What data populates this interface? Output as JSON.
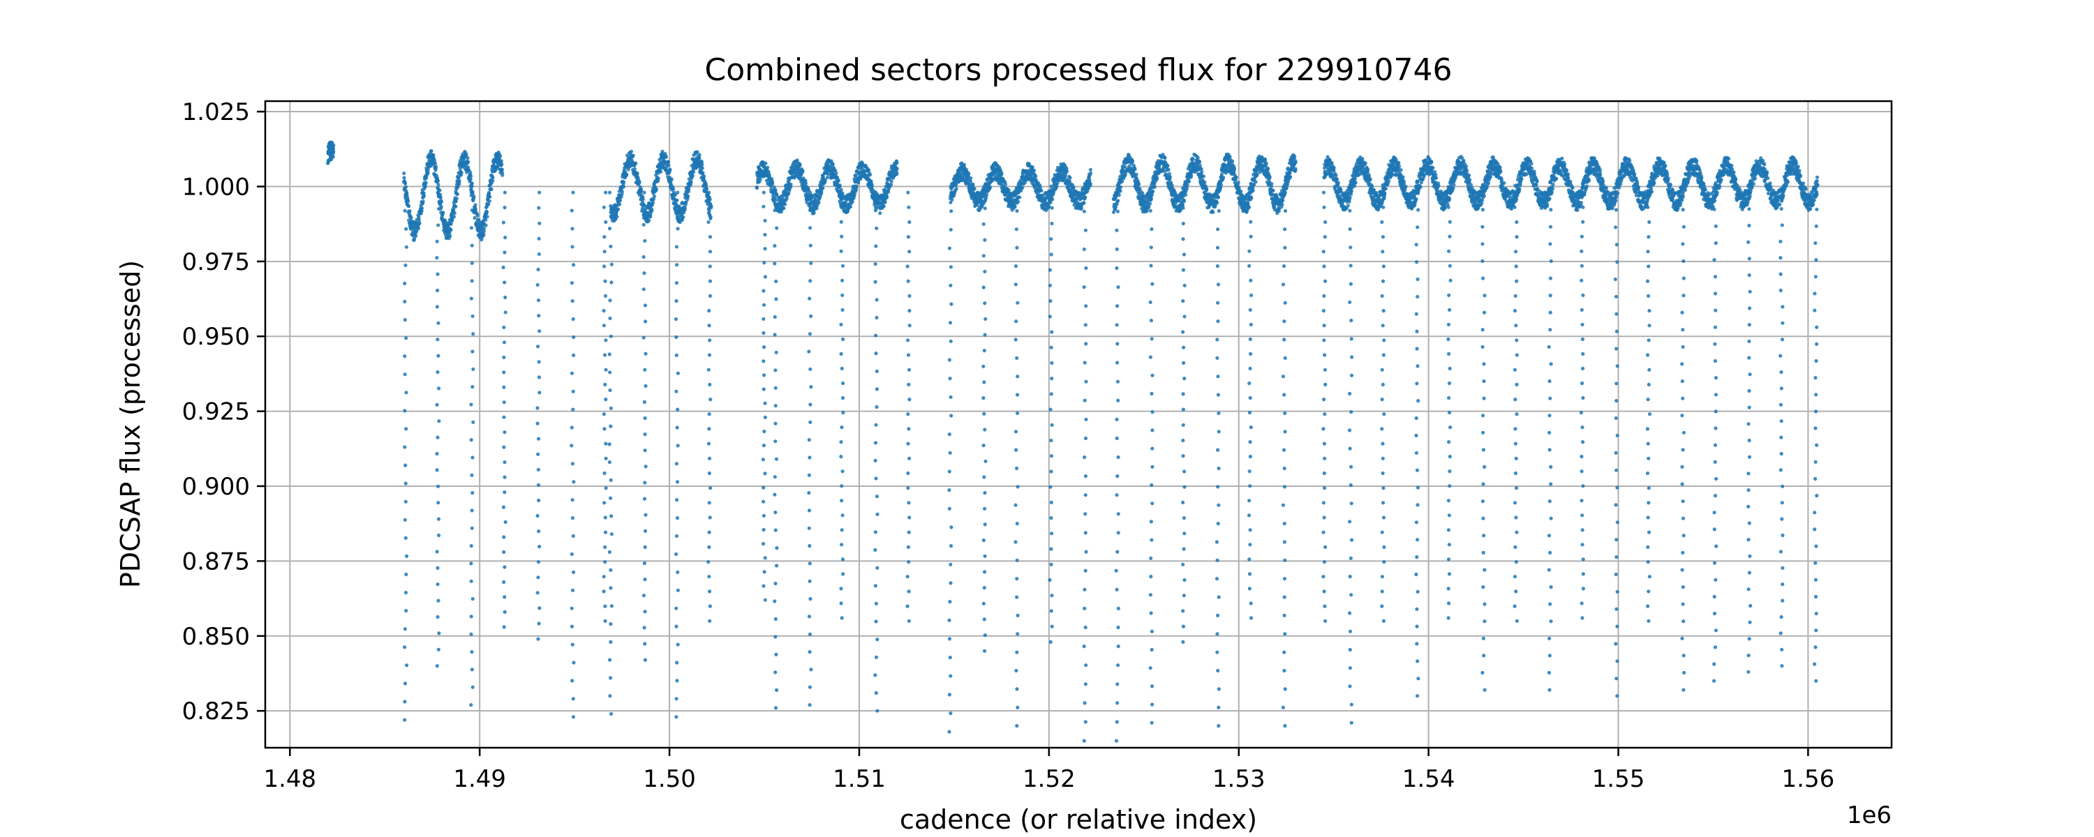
{
  "chart_data": {
    "type": "scatter",
    "title": "Combined sectors processed flux for 229910746",
    "xlabel": "cadence (or relative index)",
    "ylabel": "PDCSAP flux (processed)",
    "x_offset_label": "1e6",
    "xlim": [
      1.4787,
      1.5644
    ],
    "ylim": [
      0.8127,
      1.0285
    ],
    "xticks": [
      1.48,
      1.49,
      1.5,
      1.51,
      1.52,
      1.53,
      1.54,
      1.55,
      1.56
    ],
    "xtick_labels": [
      "1.48",
      "1.49",
      "1.50",
      "1.51",
      "1.52",
      "1.53",
      "1.54",
      "1.55",
      "1.56"
    ],
    "yticks": [
      0.825,
      0.85,
      0.875,
      0.9,
      0.925,
      0.95,
      0.975,
      1.0,
      1.025
    ],
    "ytick_labels": [
      "0.825",
      "0.850",
      "0.875",
      "0.900",
      "0.925",
      "0.950",
      "0.975",
      "1.000",
      "1.025"
    ],
    "grid": true,
    "marker_color": "#1f77b4",
    "segments": [
      {
        "x_start": 1.482,
        "x_end": 1.4823,
        "baseline": 1.006,
        "amplitude": 0.006
      },
      {
        "x_start": 1.486,
        "x_end": 1.4912,
        "baseline": 0.997,
        "amplitude": 0.012
      },
      {
        "x_start": 1.4969,
        "x_end": 1.5022,
        "baseline": 1.0,
        "amplitude": 0.009
      },
      {
        "x_start": 1.5046,
        "x_end": 1.512,
        "baseline": 1.0,
        "amplitude": 0.006
      },
      {
        "x_start": 1.5148,
        "x_end": 1.5222,
        "baseline": 1.0,
        "amplitude": 0.005
      },
      {
        "x_start": 1.5234,
        "x_end": 1.533,
        "baseline": 1.001,
        "amplitude": 0.007
      },
      {
        "x_start": 1.5345,
        "x_end": 1.5605,
        "baseline": 1.001,
        "amplitude": 0.006
      }
    ],
    "eclipses": [
      {
        "x": 1.4861,
        "min": 0.822
      },
      {
        "x": 1.4878,
        "min": 0.84
      },
      {
        "x": 1.4896,
        "min": 0.827
      },
      {
        "x": 1.4913,
        "min": 0.853
      },
      {
        "x": 1.4931,
        "min": 0.849
      },
      {
        "x": 1.4949,
        "min": 0.823
      },
      {
        "x": 1.4966,
        "min": 0.855
      },
      {
        "x": 1.4969,
        "min": 0.824
      },
      {
        "x": 1.4987,
        "min": 0.842
      },
      {
        "x": 1.5004,
        "min": 0.823
      },
      {
        "x": 1.5021,
        "min": 0.855
      },
      {
        "x": 1.505,
        "min": 0.862
      },
      {
        "x": 1.5056,
        "min": 0.826
      },
      {
        "x": 1.5074,
        "min": 0.827
      },
      {
        "x": 1.5091,
        "min": 0.856
      },
      {
        "x": 1.5109,
        "min": 0.825
      },
      {
        "x": 1.5126,
        "min": 0.855
      },
      {
        "x": 1.5148,
        "min": 0.818
      },
      {
        "x": 1.5166,
        "min": 0.845
      },
      {
        "x": 1.5183,
        "min": 0.82
      },
      {
        "x": 1.5201,
        "min": 0.848
      },
      {
        "x": 1.5219,
        "min": 0.815
      },
      {
        "x": 1.5236,
        "min": 0.815
      },
      {
        "x": 1.5254,
        "min": 0.821
      },
      {
        "x": 1.5271,
        "min": 0.848
      },
      {
        "x": 1.5289,
        "min": 0.82
      },
      {
        "x": 1.5306,
        "min": 0.856
      },
      {
        "x": 1.5324,
        "min": 0.82
      },
      {
        "x": 1.5345,
        "min": 0.855
      },
      {
        "x": 1.5359,
        "min": 0.821
      },
      {
        "x": 1.5376,
        "min": 0.855
      },
      {
        "x": 1.5394,
        "min": 0.83
      },
      {
        "x": 1.5411,
        "min": 0.856
      },
      {
        "x": 1.5429,
        "min": 0.832
      },
      {
        "x": 1.5446,
        "min": 0.855
      },
      {
        "x": 1.5464,
        "min": 0.832
      },
      {
        "x": 1.5481,
        "min": 0.856
      },
      {
        "x": 1.5499,
        "min": 0.83
      },
      {
        "x": 1.5516,
        "min": 0.855
      },
      {
        "x": 1.5534,
        "min": 0.832
      },
      {
        "x": 1.5551,
        "min": 0.835
      },
      {
        "x": 1.5569,
        "min": 0.838
      },
      {
        "x": 1.5586,
        "min": 0.84
      },
      {
        "x": 1.5604,
        "min": 0.835
      }
    ]
  }
}
